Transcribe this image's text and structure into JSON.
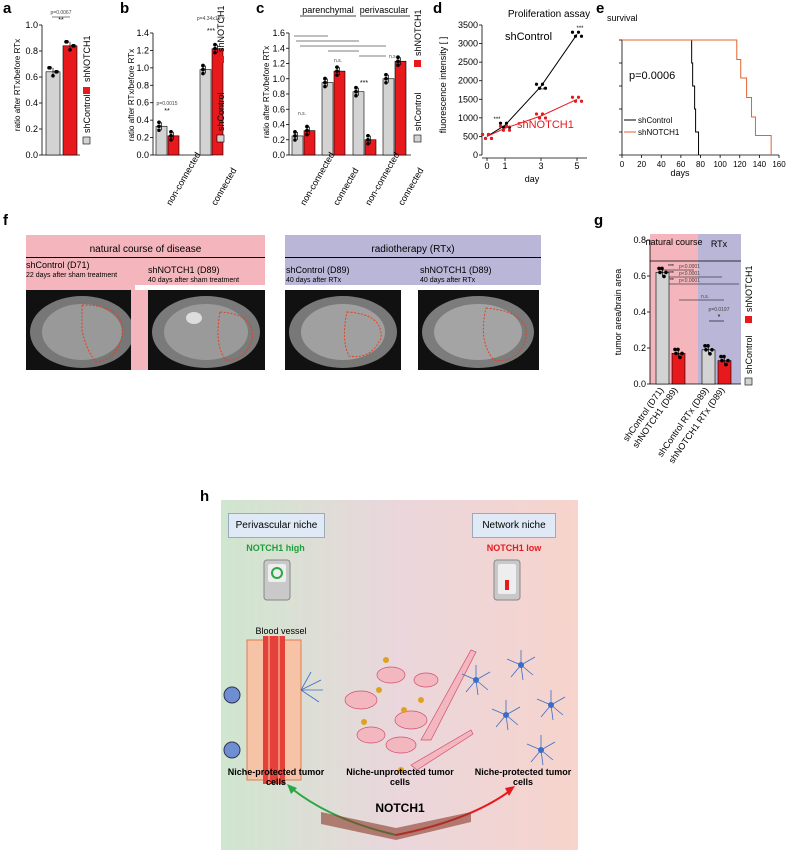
{
  "panel_letters": {
    "a": "a",
    "b": "b",
    "c": "c",
    "d": "d",
    "e": "e",
    "f": "f",
    "g": "g",
    "h": "h"
  },
  "legend": {
    "ctrl": "shControl",
    "notch": "shNOTCH1"
  },
  "colors": {
    "ctrl": "#d3d3d3",
    "notch": "#e8191d",
    "pink": "#f4b6bc",
    "lav": "#b9b6d8"
  },
  "panel_a": {
    "ylabel": "ratio after RTx/before RTx",
    "pval": "p=0.0067",
    "stars": "**",
    "chart_data": {
      "type": "bar",
      "categories": [
        "shControl",
        "shNOTCH1"
      ],
      "values": [
        0.64,
        0.84
      ],
      "ylim": [
        0,
        1.0
      ],
      "yticks": [
        "0.0",
        "0.2",
        "0.4",
        "0.6",
        "0.8",
        "1.0"
      ]
    }
  },
  "panel_b": {
    "ylabel": "ratio after RTx/before RTx",
    "groups": [
      "non-connected",
      "connected"
    ],
    "p1": "p=0.0015",
    "s1": "**",
    "p2": "p=4.34x10⁻⁵",
    "s2": "***",
    "chart_data": {
      "type": "bar",
      "categories": [
        "non-connected",
        "connected"
      ],
      "series": [
        {
          "name": "shControl",
          "values": [
            0.33,
            0.98
          ]
        },
        {
          "name": "shNOTCH1",
          "values": [
            0.22,
            1.22
          ]
        }
      ],
      "ylim": [
        0,
        1.4
      ],
      "yticks": [
        "0.0",
        "0.2",
        "0.4",
        "0.6",
        "0.8",
        "1.0",
        "1.2",
        "1.4"
      ]
    }
  },
  "panel_c": {
    "ylabel": "ratio after RTx/before RTx",
    "headers": [
      "parenchymal",
      "perivascular"
    ],
    "groups": [
      "non-connected",
      "connected",
      "non-connected",
      "connected"
    ],
    "ns": "n.s.",
    "s3": "***",
    "chart_data": {
      "type": "bar",
      "categories": [
        "non-connected",
        "connected",
        "non-connected",
        "connected"
      ],
      "series": [
        {
          "name": "shControl",
          "values": [
            0.25,
            0.95,
            0.83,
            1.0
          ]
        },
        {
          "name": "shNOTCH1",
          "values": [
            0.32,
            1.1,
            0.2,
            1.23
          ]
        }
      ],
      "ylim": [
        0,
        1.6
      ],
      "yticks": [
        "0.0",
        "0.2",
        "0.4",
        "0.6",
        "0.8",
        "1.0",
        "1.2",
        "1.4",
        "1.6"
      ]
    }
  },
  "panel_d": {
    "title": "Proliferation assay",
    "ylabel": "fluorescence intensity [ ]",
    "xlabel": "day",
    "ctrl_label": "shControl",
    "notch_label": "shNOTCH1",
    "stars": "***",
    "chart_data": {
      "type": "line",
      "x": [
        0,
        1,
        3,
        5
      ],
      "series": [
        {
          "name": "shControl",
          "values": [
            500,
            800,
            1850,
            3250
          ]
        },
        {
          "name": "shNOTCH1",
          "values": [
            500,
            720,
            1050,
            1500
          ]
        }
      ],
      "ylim": [
        0,
        3500
      ],
      "yticks": [
        "0",
        "500",
        "1000",
        "1500",
        "2000",
        "2500",
        "3000",
        "3500"
      ],
      "xticks": [
        "0",
        "1",
        "3",
        "5"
      ]
    }
  },
  "panel_e": {
    "title": "survival",
    "pval": "p=0.0006",
    "xlabel": "days",
    "legend": [
      "shControl",
      "shNOTCH1"
    ],
    "chart_data": {
      "type": "line",
      "xlim": [
        0,
        160
      ],
      "ylim": [
        0,
        1
      ],
      "xticks": [
        "0",
        "20",
        "40",
        "60",
        "80",
        "100",
        "120",
        "140",
        "160"
      ],
      "yticks": [
        "0",
        "0.2",
        "0.4",
        "0.6",
        "0.8",
        "1.0"
      ],
      "series": [
        {
          "name": "shControl",
          "steps": [
            [
              0,
              1
            ],
            [
              71,
              1
            ],
            [
              71,
              0.8
            ],
            [
              72,
              0.8
            ],
            [
              72,
              0.6
            ],
            [
              74,
              0.6
            ],
            [
              74,
              0.4
            ],
            [
              75,
              0.4
            ],
            [
              75,
              0.2
            ],
            [
              78,
              0.2
            ],
            [
              78,
              0
            ]
          ]
        },
        {
          "name": "shNOTCH1",
          "steps": [
            [
              0,
              1
            ],
            [
              117,
              1
            ],
            [
              117,
              0.83
            ],
            [
              121,
              0.83
            ],
            [
              121,
              0.67
            ],
            [
              127,
              0.67
            ],
            [
              127,
              0.5
            ],
            [
              132,
              0.5
            ],
            [
              132,
              0.33
            ],
            [
              136,
              0.33
            ],
            [
              136,
              0.17
            ],
            [
              152,
              0.17
            ],
            [
              152,
              0
            ]
          ]
        }
      ]
    }
  },
  "panel_f": {
    "left_header": "natural course of disease",
    "right_header": "radiotherapy (RTx)",
    "images": [
      {
        "title": "shControl (D71)",
        "sub": "22 days after sham treatment"
      },
      {
        "title": "shNOTCH1 (D89)",
        "sub": "40 days after sham treatment"
      },
      {
        "title": "shControl (D89)",
        "sub": "40 days after RTx"
      },
      {
        "title": "shNOTCH1 (D89)",
        "sub": "40 days after RTx"
      }
    ]
  },
  "panel_g": {
    "ylabel": "tumor area/brain area",
    "head_left": "natural course",
    "head_right": "RTx",
    "p": "p<0.0001",
    "p2": "p=0.0197",
    "stars3": "***",
    "star1": "*",
    "ns": "n.s.",
    "chart_data": {
      "type": "bar",
      "categories": [
        "shControl (D71)",
        "shNOTCH1 (D89)",
        "shControl RTx (D89)",
        "shNOTCH1 RTx (D89)"
      ],
      "values": [
        0.62,
        0.17,
        0.19,
        0.13
      ],
      "ylim": [
        0,
        0.8
      ],
      "yticks": [
        "0.0",
        "0.2",
        "0.4",
        "0.6",
        "0.8"
      ]
    }
  },
  "panel_h": {
    "left_box": "Perivascular niche",
    "right_box": "Network niche",
    "high": "NOTCH1 high",
    "low": "NOTCH1 low",
    "vessel": "Blood vessel",
    "cap1": "Niche-protected tumor cells",
    "cap2": "Niche-unprotected tumor cells",
    "cap3": "Niche-protected tumor cells",
    "notch": "NOTCH1"
  }
}
